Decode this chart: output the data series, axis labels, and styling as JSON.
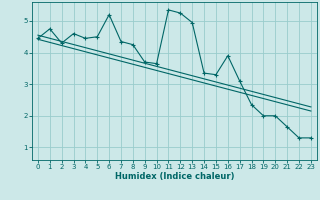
{
  "xlabel": "Humidex (Indice chaleur)",
  "bg_color": "#cce8e8",
  "line_color": "#006666",
  "grid_color": "#99cccc",
  "xlim": [
    -0.5,
    23.5
  ],
  "ylim": [
    0.6,
    5.6
  ],
  "yticks": [
    1,
    2,
    3,
    4,
    5
  ],
  "xticks": [
    0,
    1,
    2,
    3,
    4,
    5,
    6,
    7,
    8,
    9,
    10,
    11,
    12,
    13,
    14,
    15,
    16,
    17,
    18,
    19,
    20,
    21,
    22,
    23
  ],
  "curve1_x": [
    0,
    1,
    2,
    3,
    4,
    5,
    6,
    7,
    8,
    9,
    10,
    11,
    12,
    13,
    14,
    15,
    16,
    17,
    18,
    19,
    20,
    21,
    22,
    23
  ],
  "curve1_y": [
    4.45,
    4.75,
    4.3,
    4.6,
    4.45,
    4.5,
    5.2,
    4.35,
    4.25,
    3.7,
    3.65,
    5.35,
    5.25,
    4.95,
    3.35,
    3.3,
    3.9,
    3.1,
    2.35,
    2.0,
    2.0,
    1.65,
    1.3,
    1.3
  ],
  "line1_x": [
    0,
    23
  ],
  "line1_y": [
    4.55,
    2.28
  ],
  "line2_x": [
    0,
    23
  ],
  "line2_y": [
    4.42,
    2.15
  ]
}
